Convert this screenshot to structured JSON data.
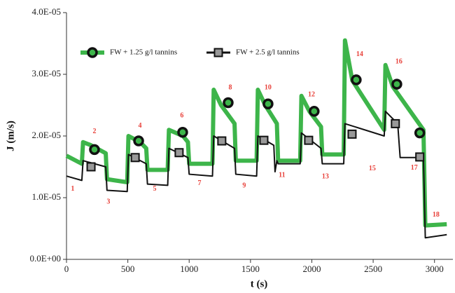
{
  "chart_data": {
    "type": "line",
    "x_label": "t (s)",
    "y_label": "J (m/s)",
    "xlim": [
      0,
      3150
    ],
    "xticks": [
      0,
      500,
      1000,
      1500,
      2000,
      2500,
      3000
    ],
    "ylim": [
      0,
      4e-05
    ],
    "yticks": [
      {
        "value": 0,
        "label": "0.0E+00"
      },
      {
        "value": 1e-05,
        "label": "1.0E-05"
      },
      {
        "value": 2e-05,
        "label": "2.0E-05"
      },
      {
        "value": 3e-05,
        "label": "3.0E-05"
      },
      {
        "value": 4e-05,
        "label": "4.0E-05"
      }
    ],
    "grid": false,
    "legend": "upper left",
    "series": [
      {
        "name": "FW + 1.25 g/l tannins",
        "color": "#3db54a",
        "marker": "circle",
        "x": [
          0,
          125,
          135,
          200,
          320,
          330,
          495,
          505,
          600,
          650,
          660,
          825,
          835,
          950,
          990,
          1000,
          1190,
          1200,
          1260,
          1370,
          1380,
          1550,
          1560,
          1620,
          1715,
          1725,
          1905,
          1915,
          1980,
          2075,
          2085,
          2260,
          2270,
          2330,
          2590,
          2600,
          2660,
          2910,
          2925,
          3100
        ],
        "values": [
          1.68e-05,
          1.55e-05,
          1.9e-05,
          1.85e-05,
          1.72e-05,
          1.3e-05,
          1.25e-05,
          2e-05,
          1.9e-05,
          1.8e-05,
          1.45e-05,
          1.45e-05,
          2.1e-05,
          2e-05,
          1.9e-05,
          1.55e-05,
          1.55e-05,
          2.75e-05,
          2.5e-05,
          2.2e-05,
          1.6e-05,
          1.6e-05,
          2.75e-05,
          2.5e-05,
          2.2e-05,
          1.6e-05,
          1.6e-05,
          2.65e-05,
          2.4e-05,
          2.15e-05,
          1.7e-05,
          1.7e-05,
          3.55e-05,
          2.9e-05,
          2.1e-05,
          3.15e-05,
          2.8e-05,
          2.1e-05,
          5.5e-06,
          5.7e-06
        ],
        "markers": {
          "x": [
            228,
            588,
            947,
            1318,
            1643,
            2019,
            2362,
            2693,
            2880
          ],
          "values": [
            1.78e-05,
            1.92e-05,
            2.06e-05,
            2.54e-05,
            2.52e-05,
            2.4e-05,
            2.91e-05,
            2.84e-05,
            2.05e-05
          ]
        }
      },
      {
        "name": "FW + 2.5 g/l tannins",
        "color": "#111111",
        "marker": "square",
        "x": [
          0,
          125,
          135,
          320,
          330,
          495,
          505,
          650,
          660,
          825,
          835,
          990,
          1000,
          1190,
          1200,
          1370,
          1380,
          1550,
          1560,
          1690,
          1700,
          1715,
          1725,
          1905,
          1915,
          2075,
          2085,
          2260,
          2270,
          2590,
          2600,
          2700,
          2720,
          2910,
          2925,
          3100
        ],
        "values": [
          1.35e-05,
          1.28e-05,
          1.6e-05,
          1.5e-05,
          1.12e-05,
          1.1e-05,
          1.7e-05,
          1.55e-05,
          1.22e-05,
          1.2e-05,
          1.8e-05,
          1.65e-05,
          1.38e-05,
          1.35e-05,
          2e-05,
          1.8e-05,
          1.38e-05,
          1.35e-05,
          2e-05,
          1.85e-05,
          1.42e-05,
          1.6e-05,
          1.55e-05,
          1.55e-05,
          2.05e-05,
          1.8e-05,
          1.55e-05,
          1.55e-05,
          2.2e-05,
          2e-05,
          2.4e-05,
          2.2e-05,
          1.65e-05,
          1.65e-05,
          3.5e-06,
          4e-06
        ],
        "markers": {
          "x": [
            200,
            560,
            918,
            1266,
            1609,
            1974,
            2328,
            2681,
            2880
          ],
          "values": [
            1.5e-05,
            1.65e-05,
            1.73e-05,
            1.92e-05,
            1.93e-05,
            1.93e-05,
            2.03e-05,
            2.2e-05,
            1.66e-05
          ]
        }
      }
    ],
    "annotations": [
      {
        "text": "1",
        "x": 51,
        "y": 1.14e-05
      },
      {
        "text": "2",
        "x": 228,
        "y": 2.07e-05
      },
      {
        "text": "3",
        "x": 342,
        "y": 9.3e-06
      },
      {
        "text": "4",
        "x": 599,
        "y": 2.16e-05
      },
      {
        "text": "5",
        "x": 719,
        "y": 1.14e-05
      },
      {
        "text": "6",
        "x": 941,
        "y": 2.33e-05
      },
      {
        "text": "7",
        "x": 1084,
        "y": 1.23e-05
      },
      {
        "text": "8",
        "x": 1335,
        "y": 2.78e-05
      },
      {
        "text": "9",
        "x": 1449,
        "y": 1.19e-05
      },
      {
        "text": "10",
        "x": 1643,
        "y": 2.78e-05
      },
      {
        "text": "11",
        "x": 1757,
        "y": 1.36e-05
      },
      {
        "text": "12",
        "x": 1997,
        "y": 2.67e-05
      },
      {
        "text": "13",
        "x": 2111,
        "y": 1.34e-05
      },
      {
        "text": "14",
        "x": 2390,
        "y": 3.32e-05
      },
      {
        "text": "15",
        "x": 2493,
        "y": 1.47e-05
      },
      {
        "text": "16",
        "x": 2710,
        "y": 3.2e-05
      },
      {
        "text": "17",
        "x": 2835,
        "y": 1.48e-05
      },
      {
        "text": "18",
        "x": 3012,
        "y": 7.2e-06
      }
    ]
  }
}
